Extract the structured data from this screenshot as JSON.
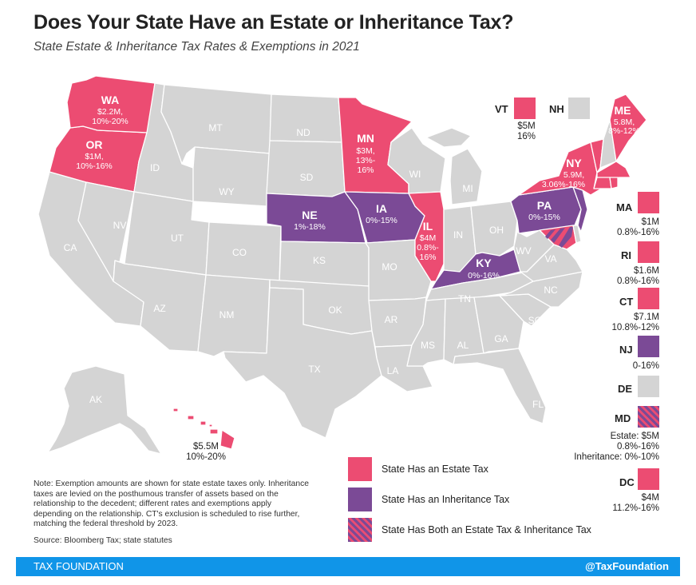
{
  "header": {
    "title": "Does Your State Have an Estate or Inheritance Tax?",
    "subtitle": "State Estate & Inheritance Tax Rates & Exemptions in 2021"
  },
  "colors": {
    "estate": "#ec4c72",
    "inheritance": "#7b4a96",
    "none": "#d4d4d4",
    "footer": "#1095e8"
  },
  "map_states": {
    "WA": {
      "abbr": "WA",
      "line1": "$2.2M,",
      "line2": "10%-20%"
    },
    "OR": {
      "abbr": "OR",
      "line1": "$1M,",
      "line2": "10%-16%"
    },
    "MN": {
      "abbr": "MN",
      "line1": "$3M,",
      "line2": "13%-",
      "line3": "16%"
    },
    "NE": {
      "abbr": "NE",
      "line1": "1%-18%"
    },
    "IA": {
      "abbr": "IA",
      "line1": "0%-15%"
    },
    "IL": {
      "abbr": "IL",
      "line1": "$4M",
      "line2": "0.8%-",
      "line3": "16%"
    },
    "KY": {
      "abbr": "KY",
      "line1": "0%-16%"
    },
    "PA": {
      "abbr": "PA",
      "line1": "0%-15%"
    },
    "NY": {
      "abbr": "NY",
      "line1": "5.9M,",
      "line2": "3.06%-16%"
    },
    "ME": {
      "abbr": "ME",
      "line1": "5.8M,",
      "line2": "8%-12%"
    },
    "MT": "MT",
    "ID": "ID",
    "WY": "WY",
    "NV": "NV",
    "CA": "CA",
    "UT": "UT",
    "CO": "CO",
    "AZ": "AZ",
    "NM": "NM",
    "ND": "ND",
    "SD": "SD",
    "KS": "KS",
    "OK": "OK",
    "TX": "TX",
    "MO": "MO",
    "AR": "AR",
    "LA": "LA",
    "WI": "WI",
    "MI": "MI",
    "IN": "IN",
    "OH": "OH",
    "TN": "TN",
    "MS": "MS",
    "AL": "AL",
    "GA": "GA",
    "FL": "FL",
    "SC": "SC",
    "NC": "NC",
    "VA": "VA",
    "WV": "WV",
    "AK": "AK"
  },
  "hawaii": {
    "line1": "$5.5M",
    "line2": "10%-20%"
  },
  "side_states": {
    "VT": {
      "abbr": "VT",
      "line1": "$5M",
      "line2": "16%"
    },
    "NH": {
      "abbr": "NH"
    },
    "MA": {
      "abbr": "MA",
      "line1": "$1M",
      "line2": "0.8%-16%"
    },
    "RI": {
      "abbr": "RI",
      "line1": "$1.6M",
      "line2": "0.8%-16%"
    },
    "CT": {
      "abbr": "CT",
      "line1": "$7.1M",
      "line2": "10.8%-12%"
    },
    "NJ": {
      "abbr": "NJ",
      "line1": "0-16%"
    },
    "DE": {
      "abbr": "DE"
    },
    "MD": {
      "abbr": "MD",
      "line1": "Estate: $5M",
      "line2": "0.8%-16%",
      "line3": "Inheritance: 0%-10%"
    },
    "DC": {
      "abbr": "DC",
      "line1": "$4M",
      "line2": "11.2%-16%"
    }
  },
  "legend": {
    "estate": "State Has an Estate Tax",
    "inheritance": "State Has an Inheritance Tax",
    "both": "State Has Both an Estate Tax & Inheritance Tax"
  },
  "note": "Note: Exemption amounts are shown for state estate taxes only. Inheritance taxes are levied on the posthumous transfer of assets based on the relationship to the decedent; different rates and exemptions apply depending on the relationship. CT's exclusion is scheduled to rise further, matching the federal threshold by 2023.",
  "source": "Source: Bloomberg Tax; state statutes",
  "footer": {
    "left": "TAX FOUNDATION",
    "right": "@TaxFoundation"
  }
}
